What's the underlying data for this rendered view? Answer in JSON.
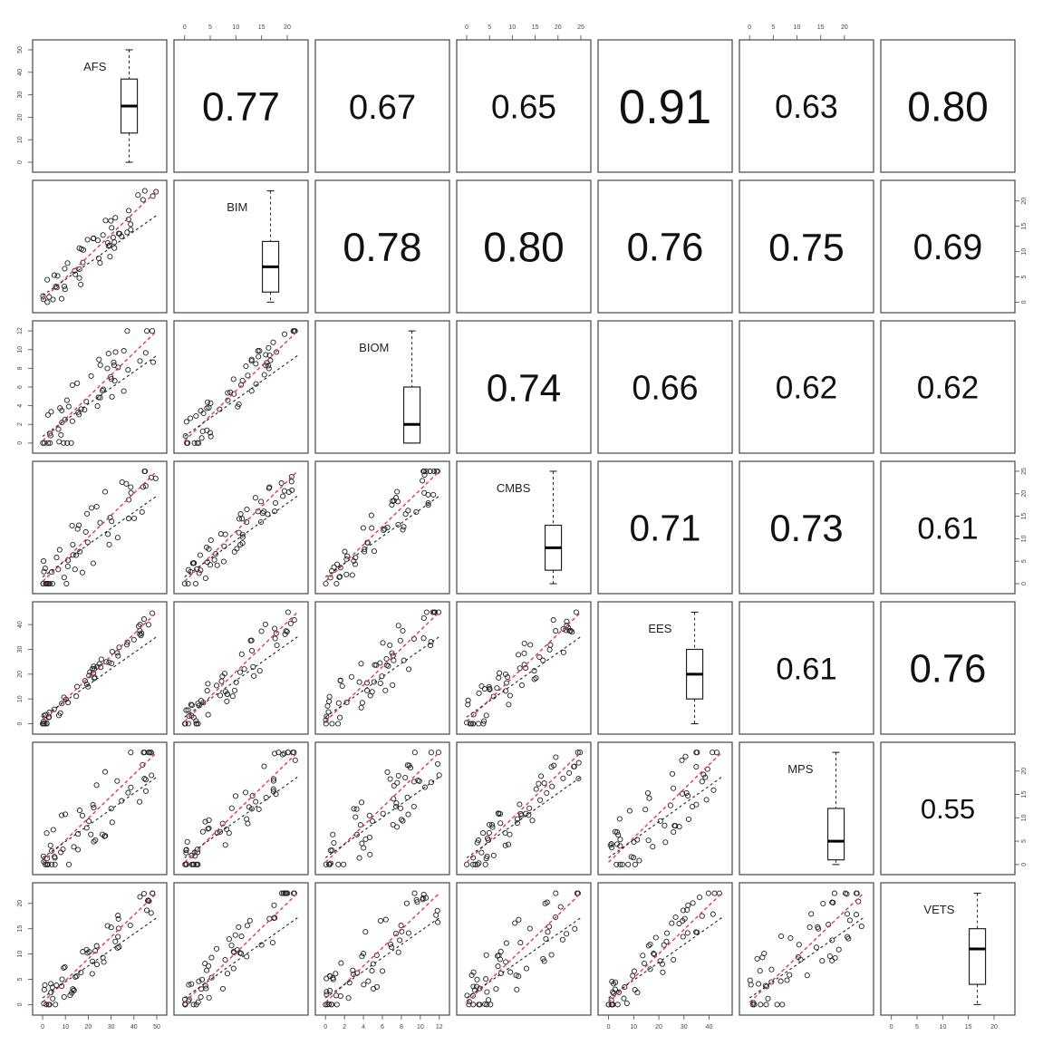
{
  "chart_data": {
    "type": "scatter",
    "variables": [
      "AFS",
      "BIM",
      "BIOM",
      "CMBS",
      "EES",
      "MPS",
      "VETS"
    ],
    "correlations": [
      {
        "row": "AFS",
        "col": "BIM",
        "value": "0.77"
      },
      {
        "row": "AFS",
        "col": "BIOM",
        "value": "0.67"
      },
      {
        "row": "AFS",
        "col": "CMBS",
        "value": "0.65"
      },
      {
        "row": "AFS",
        "col": "EES",
        "value": "0.91"
      },
      {
        "row": "AFS",
        "col": "MPS",
        "value": "0.63"
      },
      {
        "row": "AFS",
        "col": "VETS",
        "value": "0.80"
      },
      {
        "row": "BIM",
        "col": "BIOM",
        "value": "0.78"
      },
      {
        "row": "BIM",
        "col": "CMBS",
        "value": "0.80"
      },
      {
        "row": "BIM",
        "col": "EES",
        "value": "0.76"
      },
      {
        "row": "BIM",
        "col": "MPS",
        "value": "0.75"
      },
      {
        "row": "BIM",
        "col": "VETS",
        "value": "0.69"
      },
      {
        "row": "BIOM",
        "col": "CMBS",
        "value": "0.74"
      },
      {
        "row": "BIOM",
        "col": "EES",
        "value": "0.66"
      },
      {
        "row": "BIOM",
        "col": "MPS",
        "value": "0.62"
      },
      {
        "row": "BIOM",
        "col": "VETS",
        "value": "0.62"
      },
      {
        "row": "CMBS",
        "col": "EES",
        "value": "0.71"
      },
      {
        "row": "CMBS",
        "col": "MPS",
        "value": "0.73"
      },
      {
        "row": "CMBS",
        "col": "VETS",
        "value": "0.61"
      },
      {
        "row": "EES",
        "col": "MPS",
        "value": "0.61"
      },
      {
        "row": "EES",
        "col": "VETS",
        "value": "0.76"
      },
      {
        "row": "MPS",
        "col": "VETS",
        "value": "0.55"
      }
    ],
    "axes": {
      "AFS": {
        "range": [
          -2,
          52
        ],
        "ticks": [
          "0",
          "10",
          "20",
          "30",
          "40",
          "50"
        ]
      },
      "BIM": {
        "range": [
          -1,
          23
        ],
        "ticks": [
          "0",
          "5",
          "10",
          "15",
          "20"
        ]
      },
      "BIOM": {
        "range": [
          -0.5,
          12.5
        ],
        "ticks": [
          "0",
          "2",
          "4",
          "6",
          "8",
          "10",
          "12"
        ]
      },
      "CMBS": {
        "range": [
          -1,
          26
        ],
        "ticks": [
          "0",
          "5",
          "10",
          "15",
          "20",
          "25"
        ]
      },
      "EES": {
        "range": [
          -2,
          47
        ],
        "ticks": [
          "0",
          "10",
          "20",
          "30",
          "40"
        ]
      },
      "MPS": {
        "range": [
          -1,
          25
        ],
        "ticks": [
          "0",
          "5",
          "10",
          "15",
          "20"
        ]
      },
      "VETS": {
        "range": [
          -1,
          23
        ],
        "ticks": [
          "0",
          "5",
          "10",
          "15",
          "20"
        ]
      }
    },
    "boxplots": {
      "AFS": {
        "min": 0,
        "q1": 13,
        "median": 25,
        "q3": 37,
        "max": 50
      },
      "BIM": {
        "min": 0,
        "q1": 2,
        "median": 7,
        "q3": 12,
        "max": 22
      },
      "BIOM": {
        "min": 0,
        "q1": 0,
        "median": 2,
        "q3": 6,
        "max": 12
      },
      "CMBS": {
        "min": 0,
        "q1": 3,
        "median": 8,
        "q3": 13,
        "max": 25
      },
      "EES": {
        "min": 0,
        "q1": 10,
        "median": 20,
        "q3": 30,
        "max": 45
      },
      "MPS": {
        "min": 0,
        "q1": 1,
        "median": 5,
        "q3": 12,
        "max": 24
      },
      "VETS": {
        "min": 0,
        "q1": 4,
        "median": 11,
        "q3": 15,
        "max": 22
      }
    },
    "grid": false,
    "legend": "none",
    "colors": {
      "points": "#222222",
      "fit_line": "#e03a4c",
      "frame": "#555555",
      "text": "#111111"
    }
  }
}
